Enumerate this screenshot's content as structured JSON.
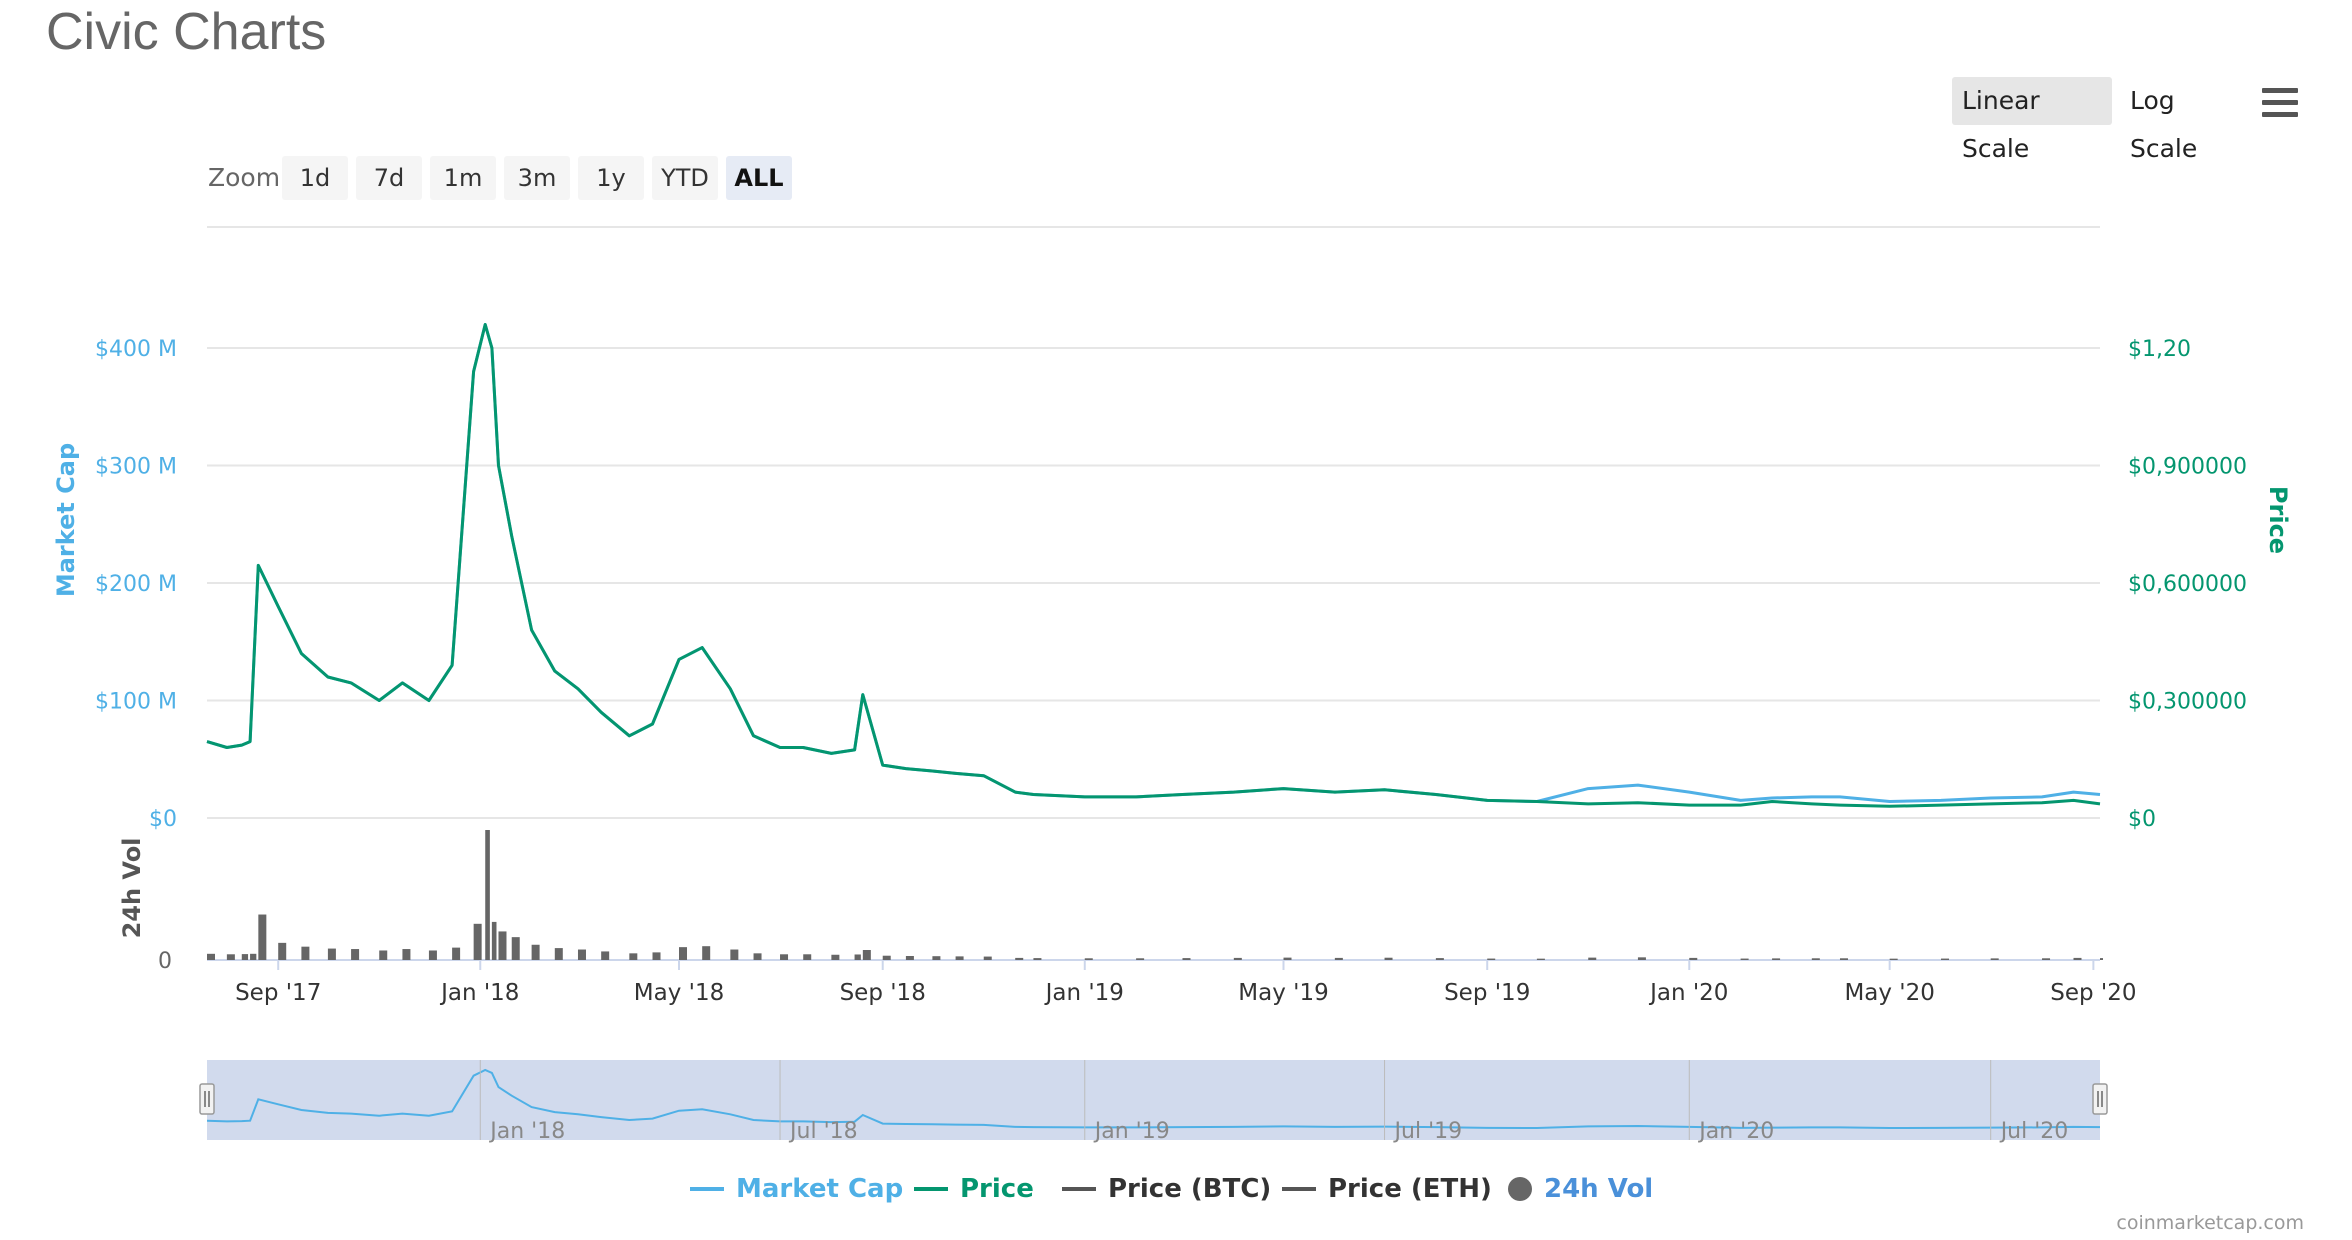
{
  "title": "Civic Charts",
  "scale_buttons": {
    "linear": "Linear Scale",
    "log": "Log Scale"
  },
  "zoom": {
    "label": "Zoom",
    "buttons": [
      "1d",
      "7d",
      "1m",
      "3m",
      "1y",
      "YTD",
      "ALL"
    ],
    "active": "ALL"
  },
  "credit": "coinmarketcap.com",
  "colors": {
    "market_cap": "#4fb0e6",
    "price": "#04966f",
    "volume": "#666666",
    "btc": "#555555",
    "eth": "#555555",
    "navigator_fill": "#ccd6eb"
  },
  "chart_data": {
    "type": "line",
    "x_axis": {
      "ticks": [
        "Sep '17",
        "Jan '18",
        "May '18",
        "Sep '18",
        "Jan '19",
        "May '19",
        "Sep '19",
        "Jan '20",
        "May '20",
        "Sep '20"
      ]
    },
    "y_left": {
      "label": "Market Cap",
      "ticks": [
        "$0",
        "$100 M",
        "$200 M",
        "$300 M",
        "$400 M"
      ],
      "range": [
        0,
        400
      ]
    },
    "y_right": {
      "label": "Price",
      "ticks": [
        "$0",
        "$0,300000",
        "$0,600000",
        "$0,900000",
        "$1,20"
      ],
      "range": [
        0,
        1.2
      ]
    },
    "volume_axis": {
      "label": "24h Vol",
      "ticks": [
        "0"
      ]
    },
    "navigator_ticks": [
      "Jan '18",
      "Jul '18",
      "Jan '19",
      "Jul '19",
      "Jan '20",
      "Jul '20"
    ],
    "x": [
      "2017-07-20",
      "2017-08-01",
      "2017-08-10",
      "2017-08-15",
      "2017-08-20",
      "2017-09-01",
      "2017-09-15",
      "2017-10-01",
      "2017-10-15",
      "2017-11-01",
      "2017-11-15",
      "2017-12-01",
      "2017-12-15",
      "2017-12-28",
      "2018-01-04",
      "2018-01-08",
      "2018-01-12",
      "2018-01-20",
      "2018-02-01",
      "2018-02-15",
      "2018-03-01",
      "2018-03-15",
      "2018-04-01",
      "2018-04-15",
      "2018-05-01",
      "2018-05-15",
      "2018-06-01",
      "2018-06-15",
      "2018-07-01",
      "2018-07-15",
      "2018-08-01",
      "2018-08-15",
      "2018-08-20",
      "2018-09-01",
      "2018-09-15",
      "2018-10-01",
      "2018-10-15",
      "2018-11-01",
      "2018-11-20",
      "2018-12-01",
      "2019-01-01",
      "2019-02-01",
      "2019-03-01",
      "2019-04-01",
      "2019-05-01",
      "2019-06-01",
      "2019-07-01",
      "2019-08-01",
      "2019-09-01",
      "2019-10-01",
      "2019-11-01",
      "2019-12-01",
      "2020-01-01",
      "2020-02-01",
      "2020-02-20",
      "2020-03-15",
      "2020-04-01",
      "2020-05-01",
      "2020-06-01",
      "2020-07-01",
      "2020-08-01",
      "2020-08-20",
      "2020-09-05"
    ],
    "series": [
      {
        "name": "Market Cap",
        "axis": "left",
        "values": [
          65,
          60,
          62,
          65,
          215,
          180,
          140,
          120,
          115,
          100,
          115,
          100,
          130,
          380,
          420,
          400,
          300,
          240,
          160,
          125,
          110,
          90,
          70,
          80,
          135,
          145,
          110,
          70,
          60,
          60,
          55,
          58,
          105,
          45,
          42,
          40,
          38,
          36,
          22,
          20,
          18,
          18,
          20,
          22,
          25,
          22,
          24,
          20,
          15,
          14,
          25,
          28,
          22,
          15,
          17,
          18,
          18,
          14,
          15,
          17,
          18,
          22,
          20
        ]
      },
      {
        "name": "Price",
        "axis": "right",
        "values": [
          0.195,
          0.18,
          0.186,
          0.195,
          0.645,
          0.54,
          0.42,
          0.36,
          0.345,
          0.3,
          0.345,
          0.3,
          0.39,
          1.14,
          1.26,
          1.2,
          0.9,
          0.72,
          0.48,
          0.375,
          0.33,
          0.27,
          0.21,
          0.24,
          0.405,
          0.435,
          0.33,
          0.21,
          0.18,
          0.18,
          0.165,
          0.174,
          0.315,
          0.135,
          0.126,
          0.12,
          0.114,
          0.108,
          0.066,
          0.06,
          0.054,
          0.054,
          0.06,
          0.066,
          0.075,
          0.066,
          0.072,
          0.06,
          0.045,
          0.042,
          0.036,
          0.039,
          0.033,
          0.033,
          0.042,
          0.036,
          0.033,
          0.03,
          0.033,
          0.036,
          0.039,
          0.045,
          0.036
        ]
      }
    ],
    "legend": [
      "Market Cap",
      "Price",
      "Price (BTC)",
      "Price (ETH)",
      "24h Vol"
    ],
    "grid": true,
    "legend_position": "bottom"
  }
}
